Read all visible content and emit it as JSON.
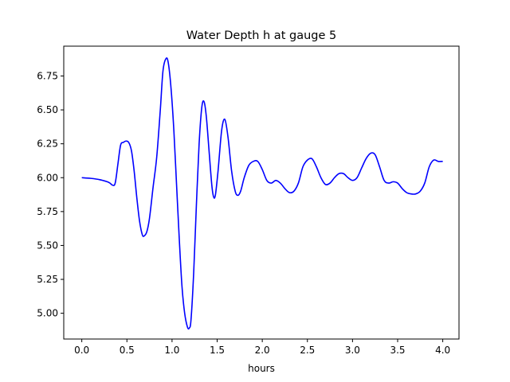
{
  "chart_data": {
    "type": "line",
    "title": "Water Depth h at gauge 5",
    "xlabel": "hours",
    "ylabel": "",
    "xlim": [
      -0.2,
      4.18
    ],
    "ylim": [
      4.81,
      6.97
    ],
    "xticks": [
      0.0,
      0.5,
      1.0,
      1.5,
      2.0,
      2.5,
      3.0,
      3.5,
      4.0
    ],
    "xtick_labels": [
      "0.0",
      "0.5",
      "1.0",
      "1.5",
      "2.0",
      "2.5",
      "3.0",
      "3.5",
      "4.0"
    ],
    "yticks": [
      5.0,
      5.25,
      5.5,
      5.75,
      6.0,
      6.25,
      6.5,
      6.75
    ],
    "ytick_labels": [
      "5.00",
      "5.25",
      "5.50",
      "5.75",
      "6.00",
      "6.25",
      "6.50",
      "6.75"
    ],
    "grid": false,
    "series": [
      {
        "color": "#0000ff",
        "points": [
          [
            0.0,
            6.0
          ],
          [
            0.1,
            5.995
          ],
          [
            0.2,
            5.985
          ],
          [
            0.3,
            5.965
          ],
          [
            0.34,
            5.945
          ],
          [
            0.37,
            5.96
          ],
          [
            0.4,
            6.1
          ],
          [
            0.43,
            6.24
          ],
          [
            0.46,
            6.26
          ],
          [
            0.49,
            6.27
          ],
          [
            0.52,
            6.26
          ],
          [
            0.55,
            6.2
          ],
          [
            0.58,
            6.05
          ],
          [
            0.61,
            5.85
          ],
          [
            0.64,
            5.68
          ],
          [
            0.67,
            5.58
          ],
          [
            0.69,
            5.57
          ],
          [
            0.72,
            5.6
          ],
          [
            0.75,
            5.7
          ],
          [
            0.79,
            5.93
          ],
          [
            0.83,
            6.15
          ],
          [
            0.87,
            6.5
          ],
          [
            0.9,
            6.79
          ],
          [
            0.935,
            6.88
          ],
          [
            0.96,
            6.84
          ],
          [
            0.99,
            6.65
          ],
          [
            1.02,
            6.35
          ],
          [
            1.05,
            5.95
          ],
          [
            1.08,
            5.55
          ],
          [
            1.11,
            5.2
          ],
          [
            1.14,
            5.0
          ],
          [
            1.17,
            4.9
          ],
          [
            1.19,
            4.89
          ],
          [
            1.21,
            4.95
          ],
          [
            1.24,
            5.3
          ],
          [
            1.27,
            5.8
          ],
          [
            1.3,
            6.25
          ],
          [
            1.33,
            6.52
          ],
          [
            1.355,
            6.56
          ],
          [
            1.38,
            6.45
          ],
          [
            1.41,
            6.2
          ],
          [
            1.44,
            5.95
          ],
          [
            1.46,
            5.86
          ],
          [
            1.48,
            5.87
          ],
          [
            1.51,
            6.05
          ],
          [
            1.55,
            6.35
          ],
          [
            1.585,
            6.43
          ],
          [
            1.62,
            6.3
          ],
          [
            1.66,
            6.05
          ],
          [
            1.7,
            5.9
          ],
          [
            1.73,
            5.87
          ],
          [
            1.76,
            5.9
          ],
          [
            1.8,
            6.0
          ],
          [
            1.85,
            6.09
          ],
          [
            1.9,
            6.12
          ],
          [
            1.95,
            6.12
          ],
          [
            2.0,
            6.06
          ],
          [
            2.05,
            5.98
          ],
          [
            2.1,
            5.96
          ],
          [
            2.15,
            5.98
          ],
          [
            2.2,
            5.96
          ],
          [
            2.25,
            5.92
          ],
          [
            2.3,
            5.89
          ],
          [
            2.35,
            5.9
          ],
          [
            2.4,
            5.96
          ],
          [
            2.45,
            6.08
          ],
          [
            2.5,
            6.13
          ],
          [
            2.55,
            6.14
          ],
          [
            2.6,
            6.08
          ],
          [
            2.65,
            6.0
          ],
          [
            2.7,
            5.95
          ],
          [
            2.75,
            5.96
          ],
          [
            2.8,
            6.0
          ],
          [
            2.85,
            6.03
          ],
          [
            2.9,
            6.03
          ],
          [
            2.95,
            6.0
          ],
          [
            3.0,
            5.98
          ],
          [
            3.05,
            6.0
          ],
          [
            3.1,
            6.07
          ],
          [
            3.15,
            6.14
          ],
          [
            3.2,
            6.18
          ],
          [
            3.25,
            6.17
          ],
          [
            3.3,
            6.08
          ],
          [
            3.35,
            5.98
          ],
          [
            3.4,
            5.96
          ],
          [
            3.45,
            5.97
          ],
          [
            3.5,
            5.96
          ],
          [
            3.55,
            5.92
          ],
          [
            3.6,
            5.89
          ],
          [
            3.65,
            5.88
          ],
          [
            3.7,
            5.88
          ],
          [
            3.75,
            5.9
          ],
          [
            3.8,
            5.96
          ],
          [
            3.85,
            6.08
          ],
          [
            3.9,
            6.13
          ],
          [
            3.95,
            6.12
          ],
          [
            4.0,
            6.12
          ]
        ]
      }
    ]
  }
}
